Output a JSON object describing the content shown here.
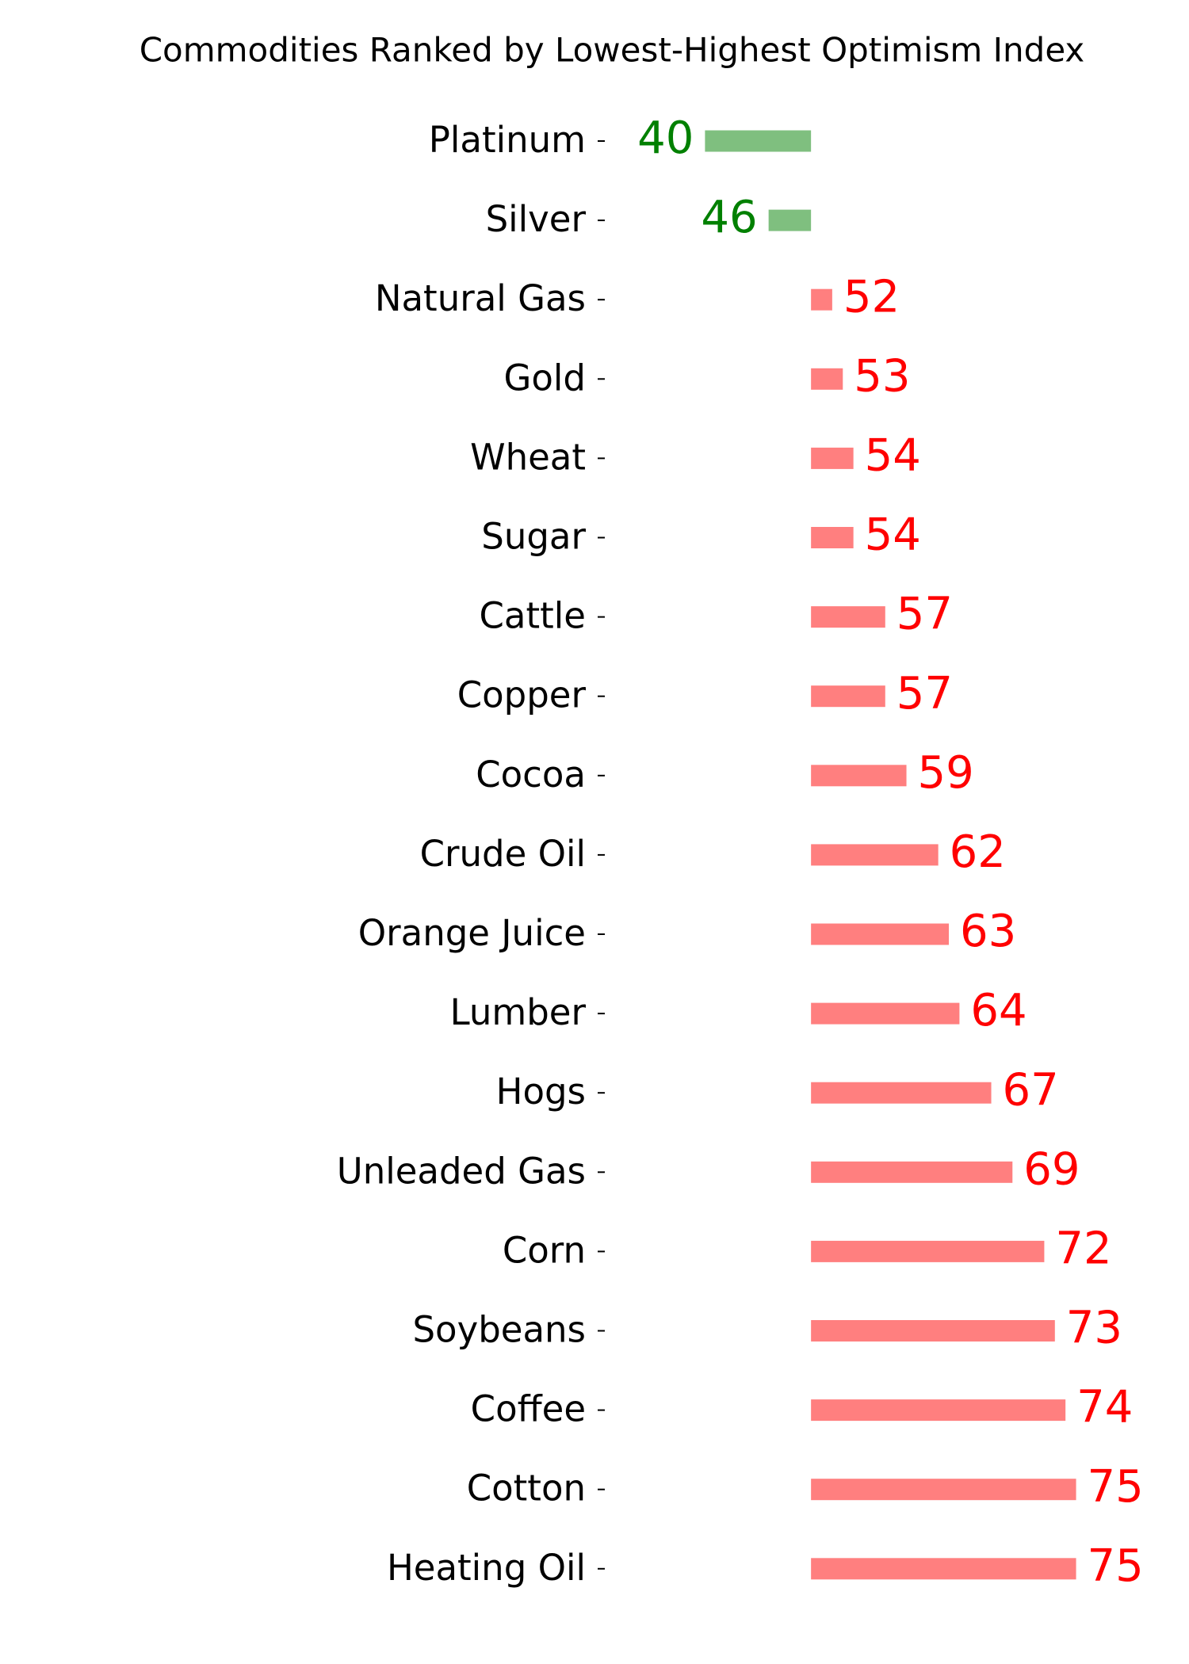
{
  "chart_data": {
    "type": "diverging-bar",
    "title": "Commodities Ranked by Lowest-Highest Optimism Index",
    "categories": [
      "Platinum",
      "Silver",
      "Natural Gas",
      "Gold",
      "Wheat",
      "Sugar",
      "Cattle",
      "Copper",
      "Cocoa",
      "Crude Oil",
      "Orange Juice",
      "Lumber",
      "Hogs",
      "Unleaded Gas",
      "Corn",
      "Soybeans",
      "Coffee",
      "Cotton",
      "Heating Oil"
    ],
    "values": [
      40,
      46,
      52,
      53,
      54,
      54,
      57,
      57,
      59,
      62,
      63,
      64,
      67,
      69,
      72,
      73,
      74,
      75,
      75
    ],
    "baseline": 50,
    "xlim": [
      31,
      85.5
    ],
    "color_below": "green",
    "color_above": "red",
    "bar_opacity": 0.5
  }
}
